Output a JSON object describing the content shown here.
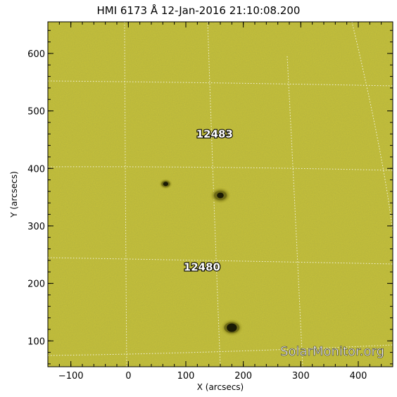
{
  "chart_data": {
    "type": "image",
    "title": "HMI 6173 Å 12-Jan-2016 21:10:08.200",
    "xlabel": "X (arcsecs)",
    "ylabel": "Y (arcsecs)",
    "xlim": [
      -140,
      460
    ],
    "ylim": [
      55,
      655
    ],
    "x_ticks": [
      -100,
      0,
      100,
      200,
      300,
      400
    ],
    "y_ticks": [
      100,
      200,
      300,
      400,
      500,
      600
    ],
    "background_color": "#c9c43a",
    "grid": "heliographic dotted white",
    "active_regions": [
      {
        "label": "12483",
        "x": 150,
        "y": 460
      },
      {
        "label": "12480",
        "x": 128,
        "y": 228
      }
    ],
    "sunspots": [
      {
        "x": 65,
        "y": 373,
        "size": "small"
      },
      {
        "x": 160,
        "y": 353,
        "size": "medium"
      },
      {
        "x": 180,
        "y": 123,
        "size": "large"
      }
    ],
    "watermark": "SolarMonitor.org"
  }
}
